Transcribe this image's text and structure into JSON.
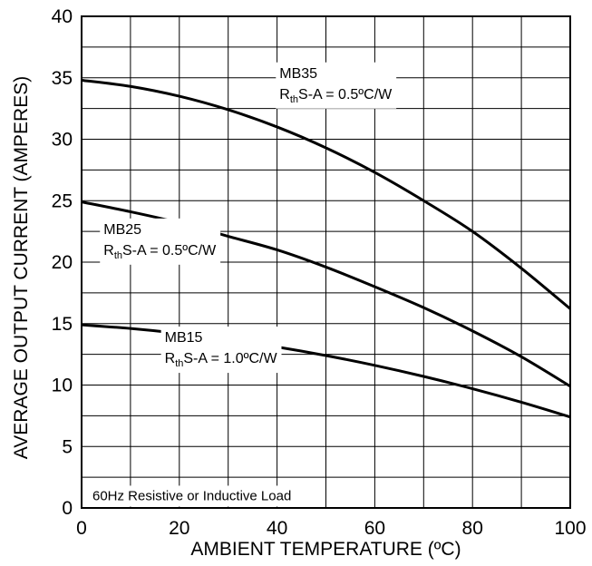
{
  "chart_data": {
    "type": "line",
    "title": "",
    "xlabel": "AMBIENT TEMPERATURE (ºC)",
    "ylabel": "AVERAGE OUTPUT CURRENT (AMPERES)",
    "xlim": [
      0,
      100
    ],
    "ylim": [
      0,
      40
    ],
    "grid": true,
    "x_ticks": [
      "0",
      "20",
      "40",
      "60",
      "80",
      "100"
    ],
    "y_ticks": [
      "0",
      "5",
      "10",
      "15",
      "20",
      "25",
      "30",
      "35",
      "40"
    ],
    "series": [
      {
        "name": "MB35",
        "x": [
          0,
          10,
          20,
          30,
          40,
          50,
          60,
          70,
          80,
          90,
          100
        ],
        "y": [
          34.8,
          34.3,
          33.5,
          32.4,
          31.0,
          29.3,
          27.3,
          25.0,
          22.5,
          19.5,
          16.2
        ]
      },
      {
        "name": "MB25",
        "x": [
          0,
          10,
          20,
          30,
          40,
          50,
          60,
          70,
          80,
          90,
          100
        ],
        "y": [
          24.9,
          24.1,
          23.2,
          22.1,
          21.0,
          19.6,
          18.0,
          16.3,
          14.4,
          12.3,
          9.9
        ]
      },
      {
        "name": "MB15",
        "x": [
          0,
          10,
          20,
          30,
          40,
          50,
          60,
          70,
          80,
          90,
          100
        ],
        "y": [
          14.9,
          14.6,
          14.2,
          13.7,
          13.1,
          12.4,
          11.6,
          10.7,
          9.7,
          8.6,
          7.4
        ]
      }
    ],
    "annotations": [
      {
        "series": "MB35",
        "name": "MB35",
        "rth": "R",
        "rth_sub": "th",
        "rth_rest": "S-A = 0.5ºC/W",
        "x": 40.5,
        "y": 35.0
      },
      {
        "series": "MB25",
        "name": "MB25",
        "rth": "R",
        "rth_sub": "th",
        "rth_rest": "S-A = 0.5ºC/W",
        "x": 4.5,
        "y": 22.3
      },
      {
        "series": "MB15",
        "name": "MB15",
        "rth": "R",
        "rth_sub": "th",
        "rth_rest": "S-A = 1.0ºC/W",
        "x": 17.0,
        "y": 13.5
      }
    ],
    "note": "60Hz Resistive or Inductive Load"
  }
}
